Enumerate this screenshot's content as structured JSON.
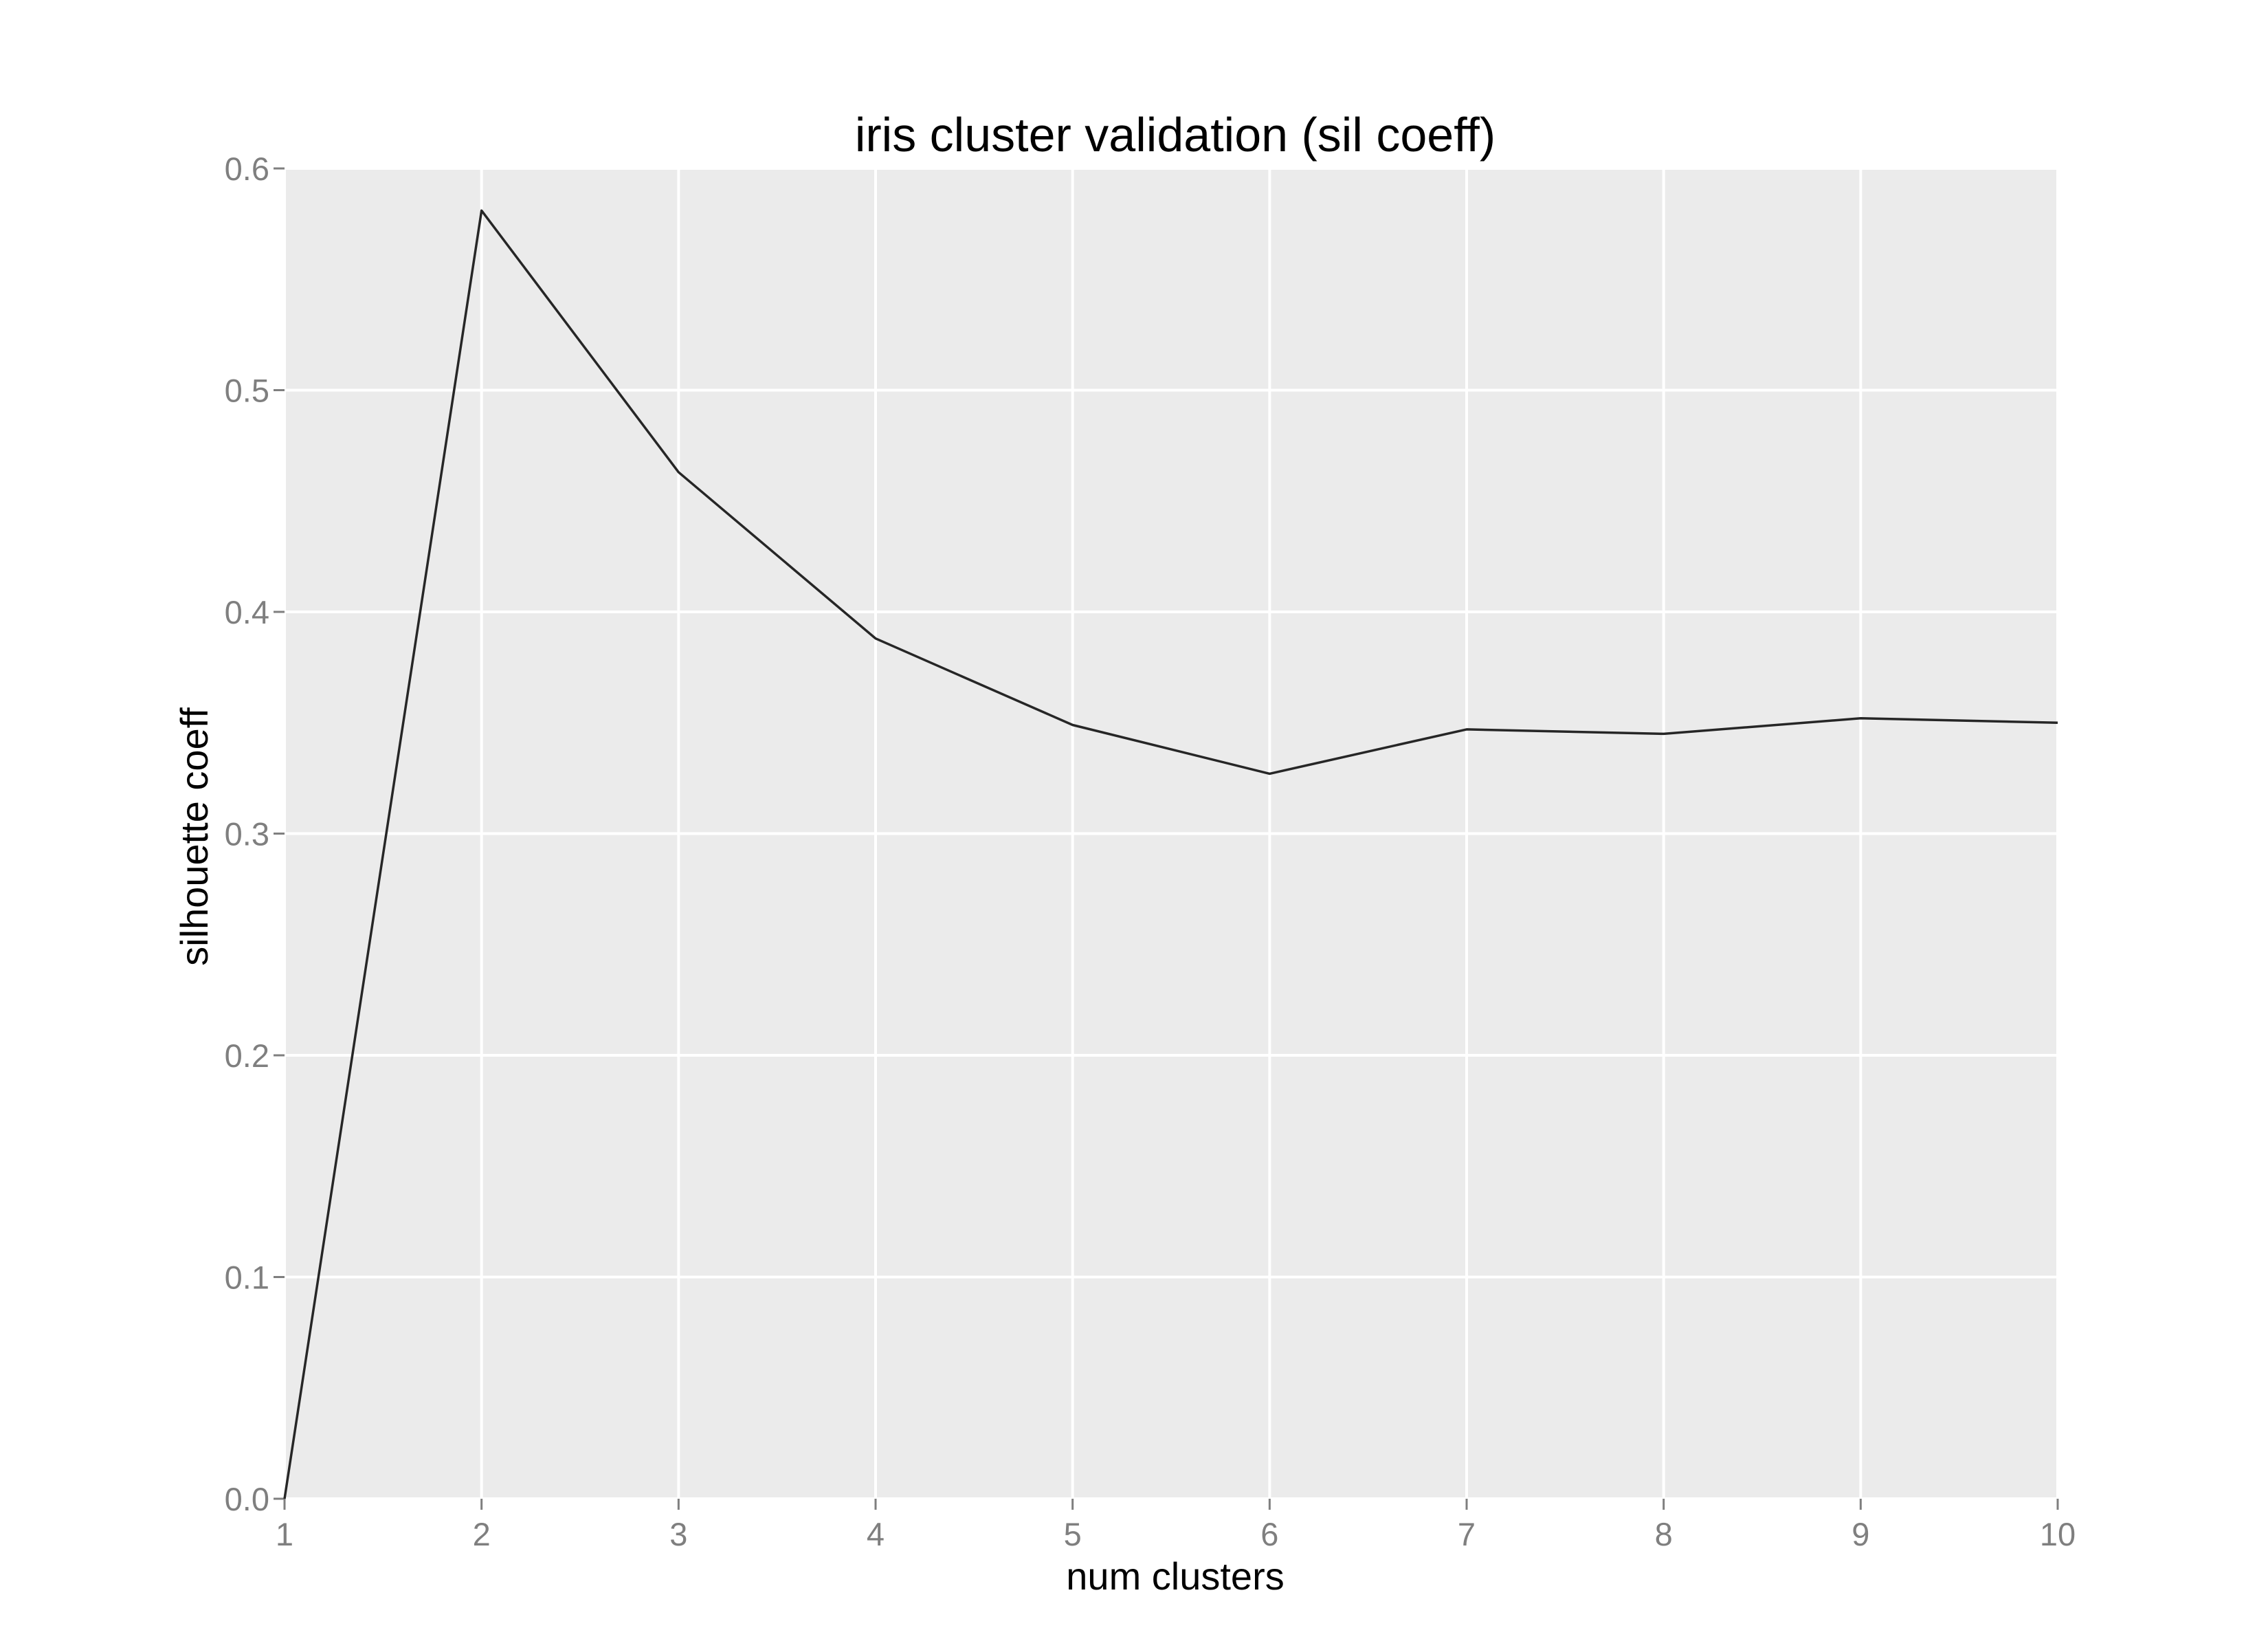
{
  "chart_data": {
    "type": "line",
    "title": "iris cluster validation (sil coeff)",
    "xlabel": "num clusters",
    "ylabel": "silhouette coeff",
    "xlim": [
      1,
      10
    ],
    "ylim": [
      0.0,
      0.6
    ],
    "x_ticks": [
      "1",
      "2",
      "3",
      "4",
      "5",
      "6",
      "7",
      "8",
      "9",
      "10"
    ],
    "y_ticks": [
      "0.0",
      "0.1",
      "0.2",
      "0.3",
      "0.4",
      "0.5",
      "0.6"
    ],
    "grid": true,
    "legend": "none",
    "colors": {
      "panel_background": "#ebebeb",
      "grid": "#ffffff",
      "line": "#262626",
      "tick_text": "#7f7f7f"
    },
    "series": [
      {
        "x": [
          1,
          2,
          3,
          4,
          5,
          6,
          7,
          8,
          9,
          10
        ],
        "values": [
          0.0,
          0.581,
          0.463,
          0.388,
          0.349,
          0.327,
          0.347,
          0.345,
          0.352,
          0.35
        ]
      }
    ]
  }
}
